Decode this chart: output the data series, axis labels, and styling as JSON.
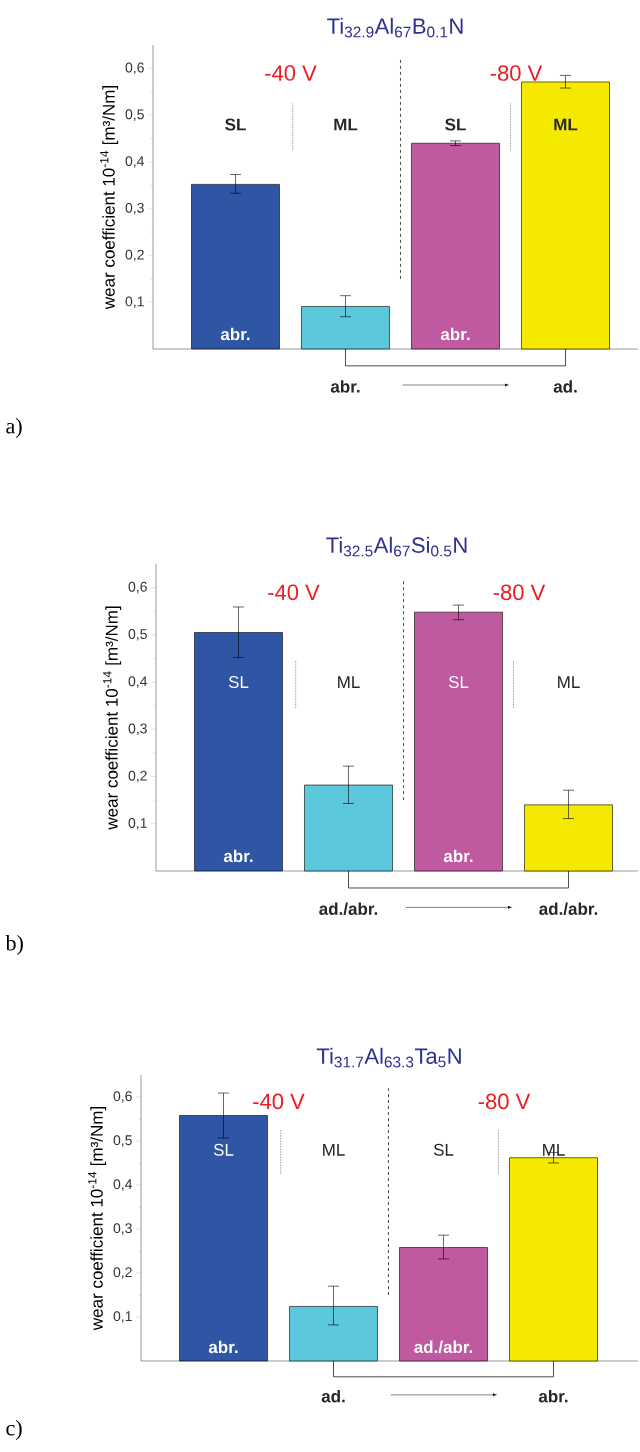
{
  "chart_data": [
    {
      "type": "bar",
      "title": "Ti$_{32.9}$Al$_{67}$B$_{0.1}$N",
      "ylabel": "wear coefficient 10$^{-14}$ [m³/Nm]",
      "categories": [
        null,
        null,
        null,
        null
      ],
      "values": [
        0.352,
        0.091,
        0.44,
        0.571
      ],
      "errors": [
        [
          0.333,
          0.373
        ],
        [
          0.069,
          0.114
        ],
        [
          0.435,
          0.445
        ],
        [
          0.558,
          0.585
        ]
      ],
      "colors": [
        "#2f55a5",
        "#5bc8db",
        "#bf59a0",
        "#f5e900"
      ],
      "ylim": [
        0,
        0.65
      ],
      "yticks": [
        {
          "value": 0.1,
          "label": "0,1"
        },
        {
          "value": 0.2,
          "label": "0,2"
        },
        {
          "value": 0.3,
          "label": "0,3"
        },
        {
          "value": 0.4,
          "label": "0,4"
        },
        {
          "value": 0.5,
          "label": "0,5"
        },
        {
          "value": 0.6,
          "label": "0,6"
        }
      ],
      "tick_labels": "y",
      "annotations": [
        "-40 V",
        "-80 V",
        "SL",
        "ML",
        "SL",
        "ML",
        "abr.",
        "abr.",
        "abr.",
        "ad.",
        "a)"
      ]
    },
    {
      "type": "bar",
      "title": "Ti$_{32.5}$Al$_{67}$Si$_{0.5}$N",
      "ylabel": "wear coefficient 10$^{-14}$ [m³/Nm]",
      "categories": [
        null,
        null,
        null,
        null
      ],
      "values": [
        0.505,
        0.182,
        0.548,
        0.14
      ],
      "errors": [
        [
          0.452,
          0.559
        ],
        [
          0.143,
          0.222
        ],
        [
          0.532,
          0.563
        ],
        [
          0.111,
          0.171
        ]
      ],
      "colors": [
        "#2f55a5",
        "#5bc8db",
        "#bf59a0",
        "#f5e900"
      ],
      "ylim": [
        0,
        0.65
      ],
      "yticks": [
        {
          "value": 0.1,
          "label": "0,1"
        },
        {
          "value": 0.2,
          "label": "0,2"
        },
        {
          "value": 0.3,
          "label": "0,3"
        },
        {
          "value": 0.4,
          "label": "0,4"
        },
        {
          "value": 0.5,
          "label": "0,5"
        },
        {
          "value": 0.6,
          "label": "0,6"
        }
      ],
      "tick_labels": "y",
      "annotations": [
        "-40 V",
        "-80 V",
        "SL",
        "ML",
        "SL",
        "ML",
        "abr.",
        "abr.",
        "ad./abr.",
        "ad./abr.",
        "b)"
      ]
    },
    {
      "type": "bar",
      "title": "Ti$_{31.7}$Al$_{63.3}$Ta$_{5}$N",
      "ylabel": "wear coefficient 10$^{-14}$ [m³/Nm]",
      "categories": [
        null,
        null,
        null,
        null
      ],
      "values": [
        0.558,
        0.124,
        0.258,
        0.462
      ],
      "errors": [
        [
          0.507,
          0.609
        ],
        [
          0.082,
          0.17
        ],
        [
          0.232,
          0.286
        ],
        [
          0.45,
          0.474
        ]
      ],
      "colors": [
        "#2f55a5",
        "#5bc8db",
        "#bf59a0",
        "#f5e900"
      ],
      "ylim": [
        0,
        0.65
      ],
      "yticks": [
        {
          "value": 0.1,
          "label": "0,1"
        },
        {
          "value": 0.2,
          "label": "0,2"
        },
        {
          "value": 0.3,
          "label": "0,3"
        },
        {
          "value": 0.4,
          "label": "0,4"
        },
        {
          "value": 0.5,
          "label": "0,5"
        },
        {
          "value": 0.6,
          "label": "0,6"
        }
      ],
      "tick_labels": "y",
      "annotations": [
        "-40 V",
        "-80 V",
        "SL",
        "ML",
        "SL",
        "ML",
        "abr.",
        "ad./abr.",
        "ad.",
        "abr.",
        "c)"
      ]
    }
  ]
}
